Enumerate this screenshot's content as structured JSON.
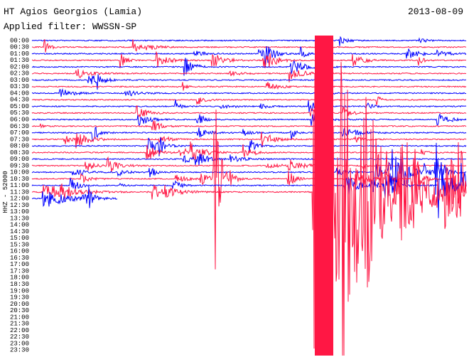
{
  "header": {
    "station": "HT Agios Georgios (Lamia)",
    "date": "2013-08-09",
    "filter": "Applied filter: WWSSN-SP"
  },
  "axis": {
    "channel": "HHZ - 52000",
    "times": [
      "00:00",
      "00:30",
      "01:00",
      "01:30",
      "02:00",
      "02:30",
      "03:00",
      "03:30",
      "04:00",
      "04:30",
      "05:00",
      "05:30",
      "06:00",
      "06:30",
      "07:00",
      "07:30",
      "08:00",
      "08:30",
      "09:00",
      "09:30",
      "10:00",
      "10:30",
      "11:00",
      "11:30",
      "12:00",
      "12:30",
      "13:00",
      "13:30",
      "14:00",
      "14:30",
      "15:00",
      "15:30",
      "16:00",
      "16:30",
      "17:00",
      "17:30",
      "18:00",
      "18:30",
      "19:00",
      "19:30",
      "20:00",
      "20:30",
      "21:00",
      "21:30",
      "22:00",
      "22:30",
      "23:00",
      "23:30"
    ]
  }
}
